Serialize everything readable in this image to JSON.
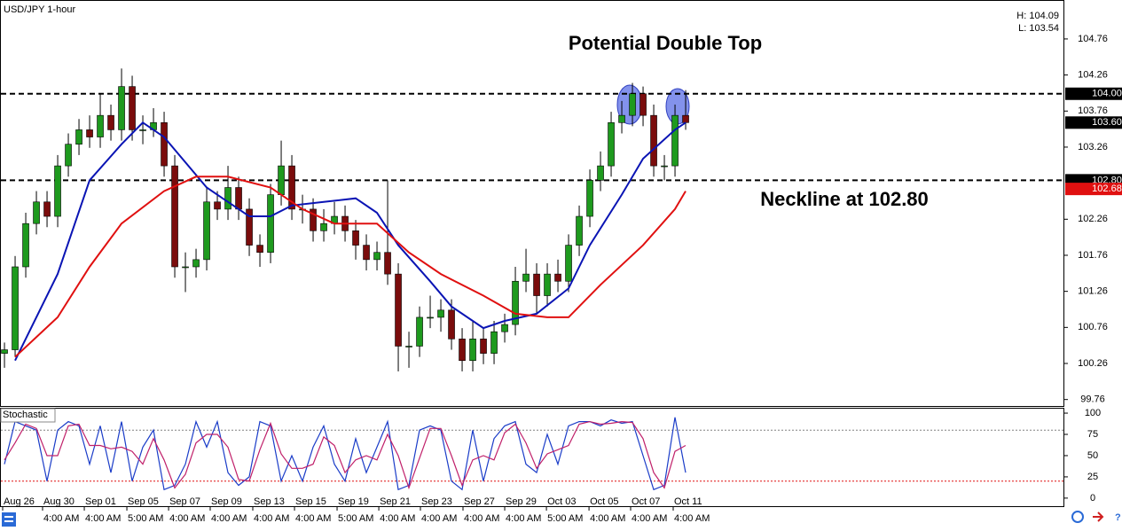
{
  "chart_data": {
    "type": "candlestick",
    "title": "USD/JPY 1-hour",
    "high_text": "H: 104.09",
    "low_text": "L: 103.54",
    "up_color": "#1e9a1e",
    "down_color": "#7a0c0c",
    "xlim": [
      -0.42,
      99.58
    ],
    "ylim": [
      99.67,
      105.3
    ],
    "yticks": [
      104.76,
      104.26,
      103.76,
      103.26,
      102.26,
      101.76,
      101.26,
      100.76,
      100.26,
      99.76
    ],
    "x": [
      0,
      1,
      2,
      3,
      4,
      5,
      6,
      7,
      8,
      9,
      10,
      11,
      12,
      13,
      14,
      15,
      16,
      17,
      18,
      19,
      20,
      21,
      22,
      23,
      24,
      25,
      26,
      27,
      28,
      29,
      30,
      31,
      32,
      33,
      34,
      35,
      36,
      37,
      38,
      39,
      40,
      41,
      42,
      43,
      44,
      45,
      46,
      47,
      48,
      49,
      50,
      51,
      52,
      53,
      54,
      55,
      56,
      57,
      58,
      59,
      60,
      61,
      62,
      63,
      64
    ],
    "open": [
      100.4,
      100.45,
      101.6,
      102.2,
      102.5,
      102.3,
      103,
      103.3,
      103.5,
      103.4,
      103.7,
      103.5,
      104.1,
      103.5,
      103.5,
      103.6,
      103,
      101.6,
      101.6,
      101.7,
      102.5,
      102.4,
      102.7,
      102.4,
      101.9,
      101.8,
      102.6,
      103,
      102.4,
      102.4,
      102.1,
      102.2,
      102.3,
      102.1,
      101.9,
      101.7,
      101.8,
      101.5,
      100.5,
      100.5,
      100.9,
      100.9,
      101,
      100.6,
      100.3,
      100.6,
      100.4,
      100.7,
      100.8,
      101.4,
      101.5,
      101.2,
      101.5,
      101.4,
      101.9,
      102.3,
      102.8,
      103,
      103.6,
      103.7,
      104,
      103.7,
      103,
      103,
      103.7
    ],
    "high": [
      100.55,
      101.75,
      102.35,
      102.65,
      102.65,
      103.15,
      103.45,
      103.65,
      103.7,
      104,
      103.85,
      104.35,
      104.25,
      103.7,
      103.8,
      103.75,
      103.15,
      101.8,
      101.85,
      102.7,
      102.65,
      103,
      102.85,
      102.55,
      102.05,
      102.75,
      103.35,
      103.15,
      102.6,
      102.55,
      102.4,
      102.5,
      102.45,
      102.25,
      102.05,
      101.95,
      102.8,
      101.65,
      100.7,
      101.05,
      101.2,
      101.15,
      101.15,
      100.75,
      100.85,
      100.75,
      100.85,
      100.95,
      101.6,
      101.85,
      101.65,
      101.65,
      101.7,
      102.05,
      102.45,
      102.95,
      103.2,
      103.75,
      103.9,
      104.15,
      104.1,
      103.85,
      103.15,
      103.85,
      104.05
    ],
    "low": [
      100.2,
      100.35,
      101.45,
      102.05,
      102.15,
      102.15,
      102.85,
      103.15,
      103.25,
      103.25,
      103.35,
      103.35,
      103.35,
      103.3,
      103.4,
      102.85,
      101.45,
      101.25,
      101.45,
      101.55,
      102.25,
      102.25,
      102.25,
      101.75,
      101.6,
      101.65,
      102.45,
      102.25,
      102.2,
      101.95,
      101.95,
      102.05,
      101.95,
      101.7,
      101.55,
      101.55,
      101.35,
      100.15,
      100.2,
      100.35,
      100.75,
      100.7,
      100.45,
      100.15,
      100.15,
      100.25,
      100.25,
      100.55,
      100.65,
      101.25,
      100.95,
      101.05,
      101.25,
      101.25,
      101.75,
      102.15,
      102.65,
      102.85,
      103.45,
      103.55,
      103.55,
      102.85,
      102.8,
      102.85,
      103.5
    ],
    "close": [
      100.45,
      101.6,
      102.2,
      102.5,
      102.3,
      103,
      103.3,
      103.5,
      103.4,
      103.7,
      103.5,
      104.1,
      103.5,
      103.5,
      103.6,
      103,
      101.6,
      101.6,
      101.7,
      102.5,
      102.4,
      102.7,
      102.4,
      101.9,
      101.8,
      102.6,
      103,
      102.4,
      102.4,
      102.1,
      102.2,
      102.3,
      102.1,
      101.9,
      101.7,
      101.8,
      101.5,
      100.5,
      100.5,
      100.9,
      100.9,
      101,
      100.6,
      100.3,
      100.6,
      100.4,
      100.7,
      100.8,
      101.4,
      101.5,
      101.2,
      101.5,
      101.4,
      101.9,
      102.3,
      102.8,
      103,
      103.6,
      103.7,
      104,
      103.7,
      103,
      103,
      103.7,
      103.6
    ],
    "overlays": [
      {
        "color": "#0a14b4",
        "x": [
          1,
          5,
          8,
          11,
          13,
          15,
          19,
          23,
          25,
          27,
          30,
          33,
          35,
          37,
          40,
          42,
          45,
          47,
          50,
          53,
          55,
          58,
          60,
          63,
          64
        ],
        "values": [
          100.3,
          101.5,
          102.8,
          103.3,
          103.6,
          103.4,
          102.7,
          102.3,
          102.3,
          102.45,
          102.5,
          102.55,
          102.35,
          101.9,
          101.4,
          101.05,
          100.75,
          100.85,
          100.95,
          101.3,
          101.9,
          102.6,
          103.1,
          103.5,
          103.6
        ]
      },
      {
        "color": "#e01010",
        "x": [
          1,
          5,
          8,
          11,
          15,
          18,
          21,
          25,
          28,
          31,
          35,
          38,
          41,
          45,
          48,
          51,
          53,
          56,
          60,
          63,
          64
        ],
        "values": [
          100.35,
          100.9,
          101.6,
          102.2,
          102.65,
          102.85,
          102.85,
          102.7,
          102.4,
          102.2,
          102.2,
          101.8,
          101.5,
          101.2,
          100.95,
          100.9,
          100.9,
          101.35,
          101.9,
          102.4,
          102.65
        ]
      }
    ],
    "price_markers": [
      {
        "value": 104,
        "label": "104.00",
        "color": "#000000",
        "dashed": true
      },
      {
        "value": 103.6,
        "label": "103.60",
        "color": "#000000",
        "dashed": false
      },
      {
        "value": 102.8,
        "label": "102.80",
        "color": "#000000",
        "dashed": true
      },
      {
        "value": 102.68,
        "label": "102.68",
        "color": "#e01010",
        "dashed": false
      }
    ],
    "annotations": [
      "Potential Double Top",
      "Neckline at 102.80"
    ],
    "xticks": [
      {
        "value": -0.17,
        "label": "Aug 26"
      },
      {
        "value": 3.58,
        "label": "Aug 30"
      },
      {
        "value": 7.5,
        "label": "Sep 01"
      },
      {
        "value": 11.5,
        "label": "Sep 05"
      },
      {
        "value": 15.42,
        "label": "Sep 07"
      },
      {
        "value": 19.33,
        "label": "Sep 09"
      },
      {
        "value": 23.33,
        "label": "Sep 13"
      },
      {
        "value": 27.25,
        "label": "Sep 15"
      },
      {
        "value": 31.25,
        "label": "Sep 19"
      },
      {
        "value": 35.17,
        "label": "Sep 21"
      },
      {
        "value": 39.08,
        "label": "Sep 23"
      },
      {
        "value": 43.08,
        "label": "Sep 27"
      },
      {
        "value": 47,
        "label": "Sep 29"
      },
      {
        "value": 50.92,
        "label": "Oct 03"
      },
      {
        "value": 54.92,
        "label": "Oct 05"
      },
      {
        "value": 58.83,
        "label": "Oct 07"
      },
      {
        "value": 62.83,
        "label": "Oct 11"
      }
    ],
    "xticks_time": [
      {
        "value": 3.58,
        "label": "4:00 AM"
      },
      {
        "value": 7.5,
        "label": "4:00 AM"
      },
      {
        "value": 11.5,
        "label": "5:00 AM"
      },
      {
        "value": 15.42,
        "label": "4:00 AM"
      },
      {
        "value": 19.33,
        "label": "4:00 AM"
      },
      {
        "value": 23.33,
        "label": "4:00 AM"
      },
      {
        "value": 27.25,
        "label": "4:00 AM"
      },
      {
        "value": 31.25,
        "label": "5:00 AM"
      },
      {
        "value": 35.17,
        "label": "4:00 AM"
      },
      {
        "value": 39.08,
        "label": "4:00 AM"
      },
      {
        "value": 43.08,
        "label": "4:00 AM"
      },
      {
        "value": 47,
        "label": "4:00 AM"
      },
      {
        "value": 50.92,
        "label": "5:00 AM"
      },
      {
        "value": 54.92,
        "label": "4:00 AM"
      },
      {
        "value": 58.83,
        "label": "4:00 AM"
      },
      {
        "value": 62.83,
        "label": "4:00 AM"
      }
    ],
    "stochastic": {
      "label": "Stochastic",
      "ylim": [
        -9.5,
        106.3
      ],
      "yticks": [
        100,
        75,
        50,
        25,
        0
      ],
      "levels": [
        {
          "value": 80,
          "color": "#808080"
        },
        {
          "value": 20,
          "color": "#e01010"
        }
      ],
      "series": [
        {
          "color": "#1a3cc8",
          "values": [
            40,
            90,
            85,
            80,
            20,
            80,
            90,
            85,
            40,
            85,
            30,
            90,
            20,
            60,
            80,
            10,
            15,
            40,
            90,
            60,
            90,
            30,
            15,
            25,
            90,
            85,
            20,
            50,
            20,
            60,
            85,
            40,
            20,
            70,
            30,
            60,
            90,
            10,
            15,
            80,
            85,
            80,
            20,
            10,
            80,
            20,
            70,
            85,
            90,
            40,
            30,
            75,
            40,
            85,
            90,
            90,
            85,
            92,
            88,
            90,
            50,
            10,
            15,
            95,
            30
          ]
        },
        {
          "color": "#c0206a",
          "values": [
            45,
            65,
            87,
            82,
            50,
            50,
            85,
            87,
            62,
            62,
            58,
            60,
            55,
            40,
            70,
            45,
            12,
            28,
            65,
            75,
            75,
            60,
            22,
            20,
            57,
            88,
            52,
            35,
            35,
            40,
            72,
            62,
            30,
            45,
            50,
            45,
            75,
            50,
            12,
            47,
            82,
            82,
            50,
            15,
            45,
            50,
            45,
            77,
            87,
            65,
            35,
            52,
            57,
            62,
            87,
            90,
            87,
            88,
            90,
            89,
            70,
            30,
            12,
            55,
            62
          ]
        }
      ]
    }
  }
}
